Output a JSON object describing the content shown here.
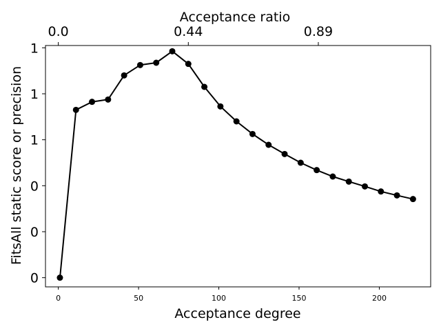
{
  "chart_data": {
    "type": "line",
    "xlabel": "Acceptance degree",
    "ylabel": "FitsAll static score or precision",
    "top_xlabel": "Acceptance ratio",
    "xlim": [
      -8,
      232
    ],
    "ylim": [
      -0.04,
      1.01
    ],
    "x_ticks": [
      0,
      50,
      100,
      150,
      200
    ],
    "top_ticks": [
      {
        "label": "0.0",
        "at": 0
      },
      {
        "label": "0.44",
        "at": 81
      },
      {
        "label": "0.89",
        "at": 162
      }
    ],
    "y_ticks": [
      {
        "label": "0",
        "value": 0.0
      },
      {
        "label": "0",
        "value": 0.2
      },
      {
        "label": "0",
        "value": 0.4
      },
      {
        "label": "1",
        "value": 0.6
      },
      {
        "label": "1",
        "value": 0.8
      },
      {
        "label": "1",
        "value": 1.0
      }
    ],
    "grid": false,
    "legend": "none",
    "series": [
      {
        "color": "#000000",
        "marker": "circle",
        "points": [
          [
            1,
            0.0
          ],
          [
            11,
            0.73
          ],
          [
            21,
            0.765
          ],
          [
            31,
            0.775
          ],
          [
            41,
            0.88
          ],
          [
            51,
            0.925
          ],
          [
            61,
            0.935
          ],
          [
            71,
            0.985
          ],
          [
            81,
            0.93
          ],
          [
            91,
            0.83
          ],
          [
            101,
            0.745
          ],
          [
            111,
            0.68
          ],
          [
            121,
            0.625
          ],
          [
            131,
            0.578
          ],
          [
            141,
            0.538
          ],
          [
            151,
            0.5
          ],
          [
            161,
            0.468
          ],
          [
            171,
            0.44
          ],
          [
            181,
            0.418
          ],
          [
            191,
            0.397
          ],
          [
            201,
            0.375
          ],
          [
            211,
            0.358
          ],
          [
            221,
            0.342
          ]
        ]
      }
    ]
  }
}
